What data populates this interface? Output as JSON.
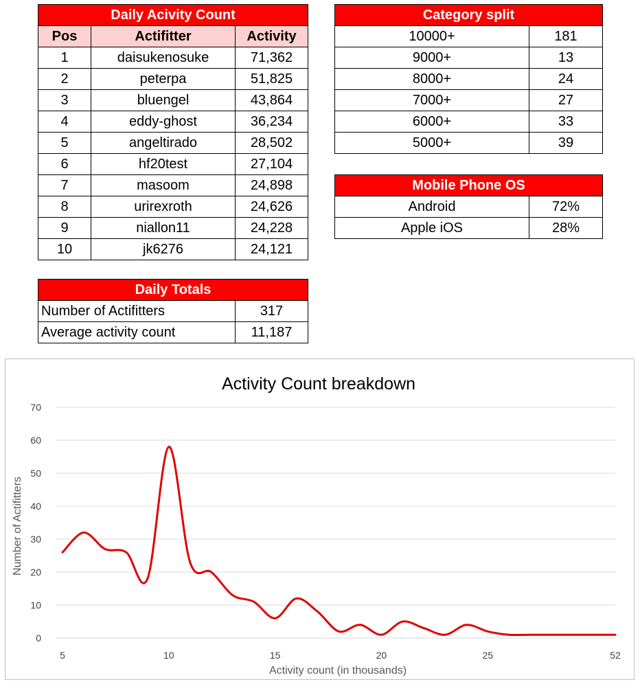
{
  "activity_table": {
    "title": "Daily Acivity Count",
    "headers": [
      "Pos",
      "Actifitter",
      "Activity"
    ],
    "rows": [
      [
        "1",
        "daisukenosuke",
        "71,362"
      ],
      [
        "2",
        "peterpa",
        "51,825"
      ],
      [
        "3",
        "bluengel",
        "43,864"
      ],
      [
        "4",
        "eddy-ghost",
        "36,234"
      ],
      [
        "5",
        "angeltirado",
        "28,502"
      ],
      [
        "6",
        "hf20test",
        "27,104"
      ],
      [
        "7",
        "masoom",
        "24,898"
      ],
      [
        "8",
        "urirexroth",
        "24,626"
      ],
      [
        "9",
        "niallon11",
        "24,228"
      ],
      [
        "10",
        "jk6276",
        "24,121"
      ]
    ]
  },
  "totals_table": {
    "title": "Daily Totals",
    "rows": [
      [
        "Number of Actifitters",
        "317"
      ],
      [
        "Average activity count",
        "11,187"
      ]
    ]
  },
  "category_table": {
    "title": "Category split",
    "rows": [
      [
        "10000+",
        "181"
      ],
      [
        "9000+",
        "13"
      ],
      [
        "8000+",
        "24"
      ],
      [
        "7000+",
        "27"
      ],
      [
        "6000+",
        "33"
      ],
      [
        "5000+",
        "39"
      ]
    ]
  },
  "os_table": {
    "title": "Mobile Phone OS",
    "rows": [
      [
        "Android",
        "72%"
      ],
      [
        "Apple iOS",
        "28%"
      ]
    ]
  },
  "colors": {
    "header_red": "#fe0000",
    "subheader_pink": "#fdd1d1",
    "line_red": "#e00000",
    "gridline": "#d9d9d9"
  },
  "chart_data": {
    "type": "line",
    "title": "Activity Count breakdown",
    "xlabel": "Activity count (in thousands)",
    "ylabel": "Number of Actifitters",
    "ylim": [
      0,
      70
    ],
    "yticks": [
      "0",
      "10",
      "20",
      "30",
      "40",
      "50",
      "60",
      "70"
    ],
    "xtick_labels": [
      "5",
      "10",
      "15",
      "20",
      "25",
      "52"
    ],
    "smooth": true,
    "grid": true,
    "legend": "none",
    "series": [
      {
        "x": [
          "5",
          "6",
          "7",
          "8",
          "9",
          "10",
          "11",
          "12",
          "13",
          "14",
          "15",
          "16",
          "17",
          "18",
          "19",
          "20",
          "21",
          "22",
          "23",
          "24",
          "25",
          "26",
          "27",
          "28",
          "29",
          "30",
          "52"
        ],
        "values": [
          26,
          32,
          27,
          26,
          18,
          58,
          23,
          20,
          13,
          11,
          6,
          12,
          8,
          2,
          4,
          1,
          5,
          3,
          1,
          4,
          2,
          1,
          1,
          1,
          1,
          1,
          1
        ]
      }
    ]
  }
}
